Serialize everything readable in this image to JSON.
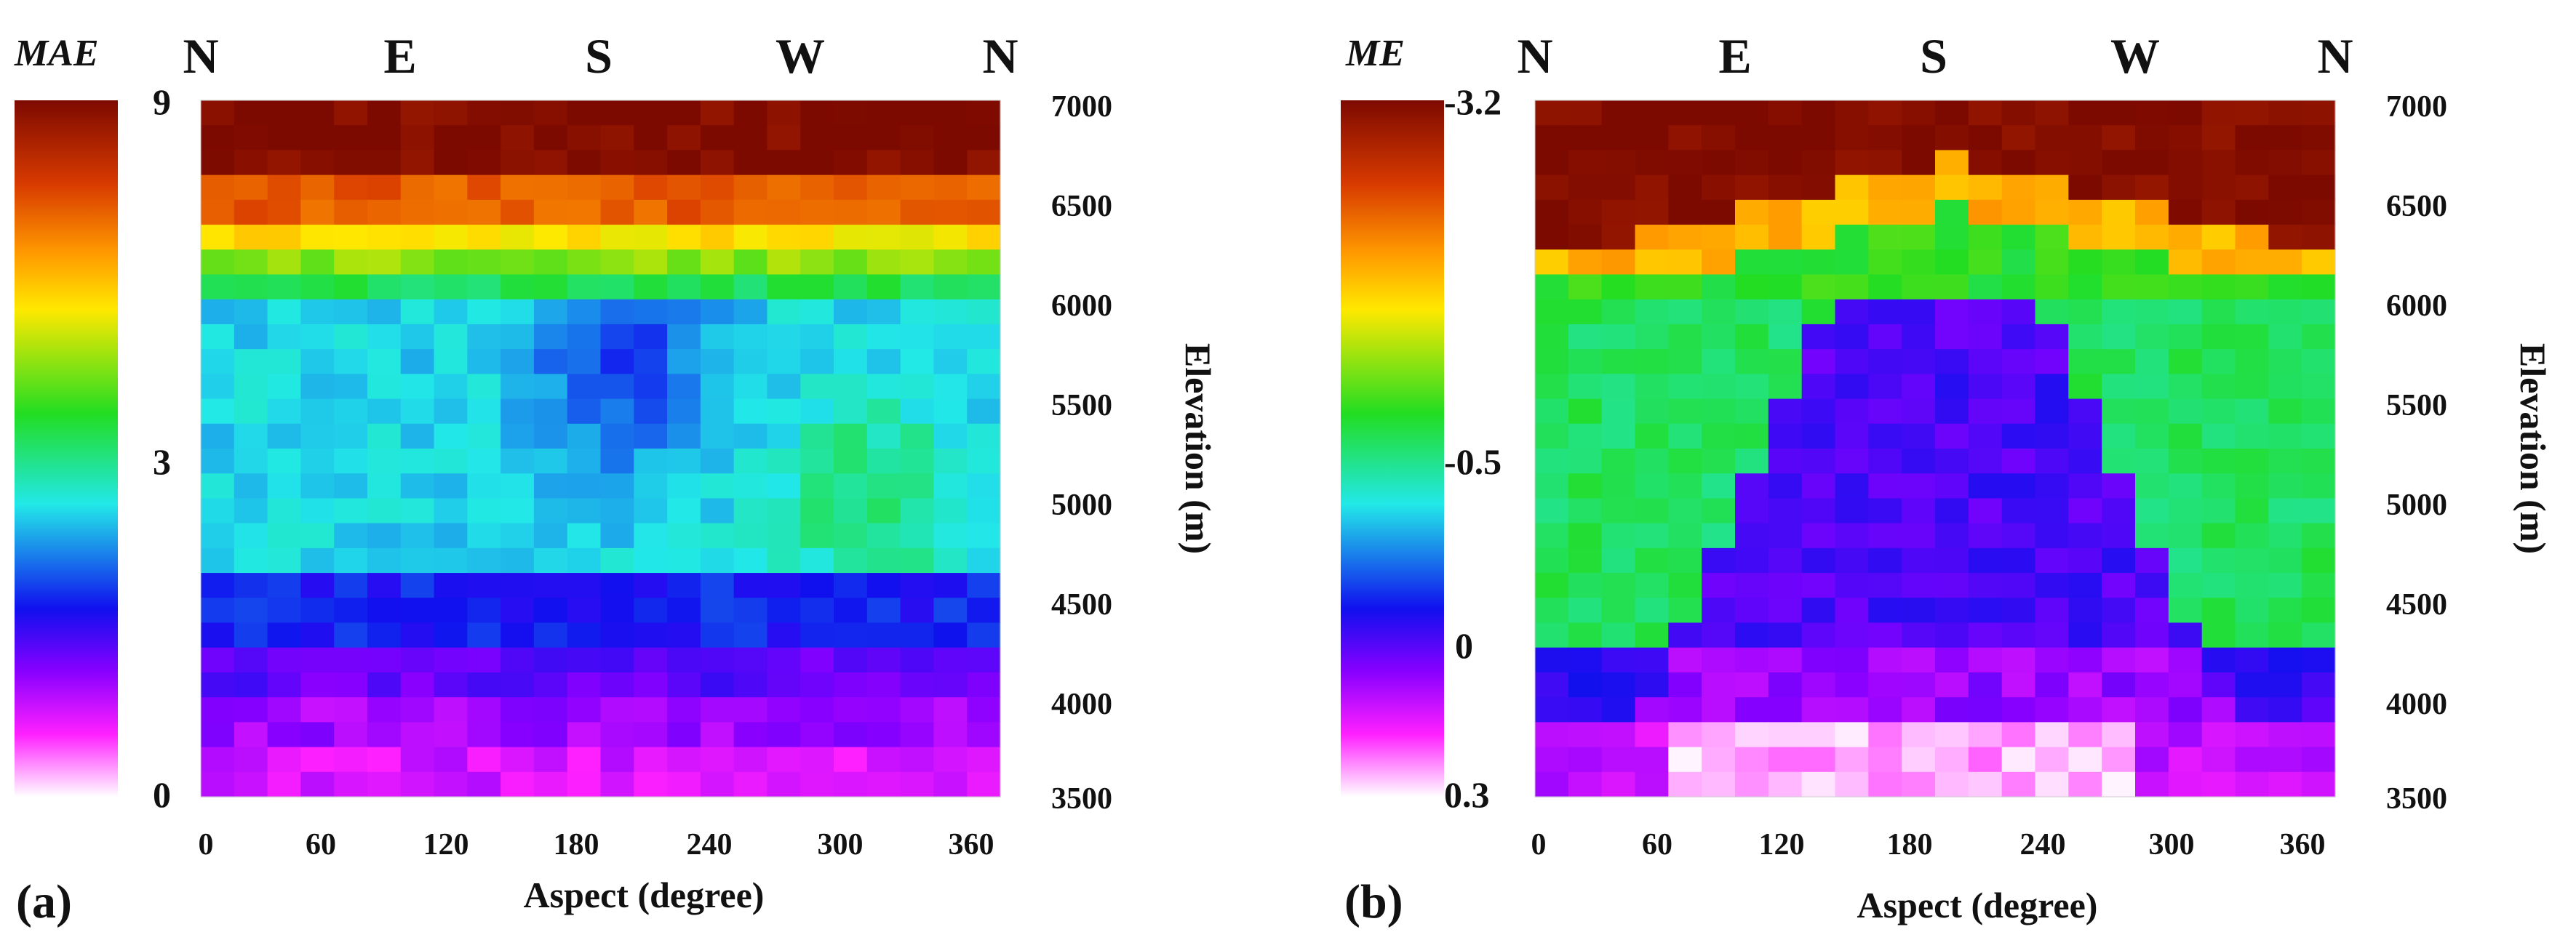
{
  "chart_data": [
    {
      "type": "heatmap",
      "panel_label": "(a)",
      "colorbar": {
        "title": "MAE",
        "tick_labels": [
          "9",
          "3",
          "0"
        ],
        "range": [
          0,
          9
        ]
      },
      "compass_labels": [
        "N",
        "E",
        "S",
        "W",
        "N"
      ],
      "xlabel": "Aspect (degree)",
      "ylabel": "Elevation (m)",
      "x_ticks": [
        "0",
        "60",
        "120",
        "180",
        "240",
        "300",
        "360"
      ],
      "y_ticks": [
        "7000",
        "6500",
        "6000",
        "5500",
        "5000",
        "4500",
        "4000",
        "3500"
      ],
      "xlim": [
        0,
        360
      ],
      "ylim": [
        3500,
        7000
      ],
      "grid": {
        "aspect_bins": 24,
        "elevation_bins": 28,
        "aspect_step_deg": 15,
        "elevation_step_m": 125
      },
      "description": "Values approximated from colors: ~9 above 6625 m, ~7 at 6500 m, ~5.5 at 6250 m, ~4 at 6000 m, ~2.5 between 4700-6000 m with a low (~1.8) near aspect 180 deg / 5500-6000 m and higher (~3.2) near 300 deg, ~1.6 at 4250-4500 m, ~0.8 at 3500-3900 m."
    },
    {
      "type": "heatmap",
      "panel_label": "(b)",
      "colorbar": {
        "title": "ME",
        "tick_labels": [
          "-3.2",
          "-0.5",
          "0",
          "0.3"
        ],
        "range": [
          -3.2,
          0.3
        ]
      },
      "compass_labels": [
        "N",
        "E",
        "S",
        "W",
        "N"
      ],
      "xlabel": "Aspect (degree)",
      "ylabel": "Elevation (m)",
      "x_ticks": [
        "0",
        "60",
        "120",
        "180",
        "240",
        "300",
        "360"
      ],
      "y_ticks": [
        "7000",
        "6500",
        "6000",
        "5500",
        "5000",
        "4500",
        "4000",
        "3500"
      ],
      "xlim": [
        0,
        360
      ],
      "ylim": [
        3500,
        7000
      ],
      "grid": {
        "aspect_bins": 24,
        "elevation_bins": 28,
        "aspect_step_deg": 15,
        "elevation_step_m": 125
      },
      "description": "Values approximated from colors: ~-3.2 at top, boundary forms a peak near aspect 190 deg (~6750 m) descending to ~6300 m at N; ~-0.8 green band 4500-6200 m; near 0 (blue/purple) inside a triangle centred on aspect 180 deg; positive (~0.2-0.3, magenta/white) near 3500-3900 m around aspect 90-240 deg."
    }
  ]
}
